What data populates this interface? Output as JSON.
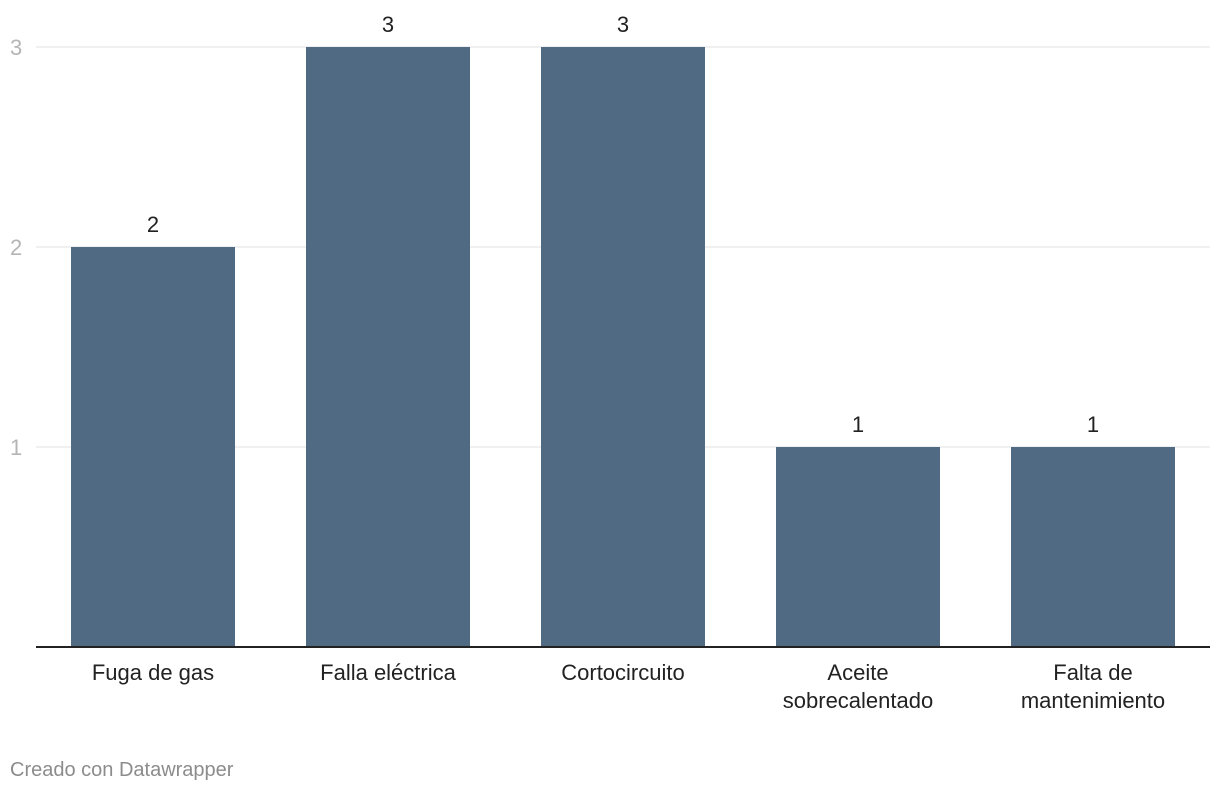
{
  "chart_data": {
    "type": "bar",
    "categories": [
      [
        "Fuga de gas"
      ],
      [
        "Falla eléctrica"
      ],
      [
        "Cortocircuito"
      ],
      [
        "Aceite",
        "sobrecalentado"
      ],
      [
        "Falta de",
        "mantenimiento"
      ]
    ],
    "values": [
      2,
      3,
      3,
      1,
      1
    ],
    "ylim": [
      0,
      3
    ],
    "yticks": [
      1,
      2,
      3
    ],
    "grid": true,
    "title": "",
    "xlabel": "",
    "ylabel": ""
  },
  "colors": {
    "bar": "#506a83",
    "grid": "#e2e2e2",
    "baseline": "#222222"
  },
  "footer": {
    "credit": "Creado con Datawrapper"
  }
}
